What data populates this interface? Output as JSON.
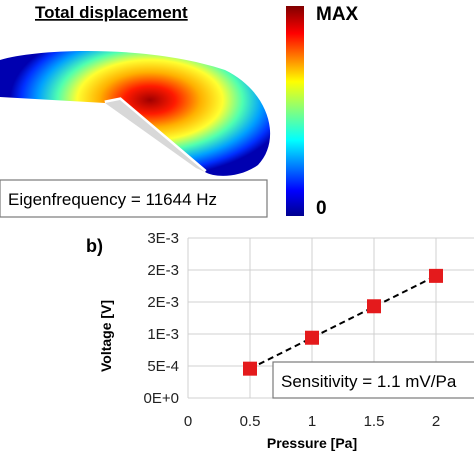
{
  "panel_a": {
    "title": "Total displacement",
    "colorbar": {
      "max_label": "MAX",
      "min_label": "0"
    },
    "eigenfrequency_label": "Eigenfrequency = 11644 Hz"
  },
  "chart_data": {
    "type": "scatter",
    "panel_label": "b)",
    "xlabel": "Pressure [Pa]",
    "ylabel": "Voltage [V]",
    "x_ticks": [
      "0",
      "0.5",
      "1",
      "1.5",
      "2"
    ],
    "y_ticks": [
      "0E+0",
      "5E-4",
      "1E-3",
      "2E-3",
      "2E-3",
      "3E-3"
    ],
    "xlim": [
      0,
      2.2
    ],
    "ylim": [
      0,
      0.003
    ],
    "grid": true,
    "series": [
      {
        "x": [
          0.5,
          1.0,
          1.5,
          2.0
        ],
        "y": [
          0.00055,
          0.00113,
          0.00172,
          0.00229
        ]
      }
    ],
    "trendline": {
      "style": "dashed",
      "color": "#000000"
    },
    "marker_color": "#e41a1c",
    "annotation": "Sensitivity = 1.1 mV/Pa"
  }
}
